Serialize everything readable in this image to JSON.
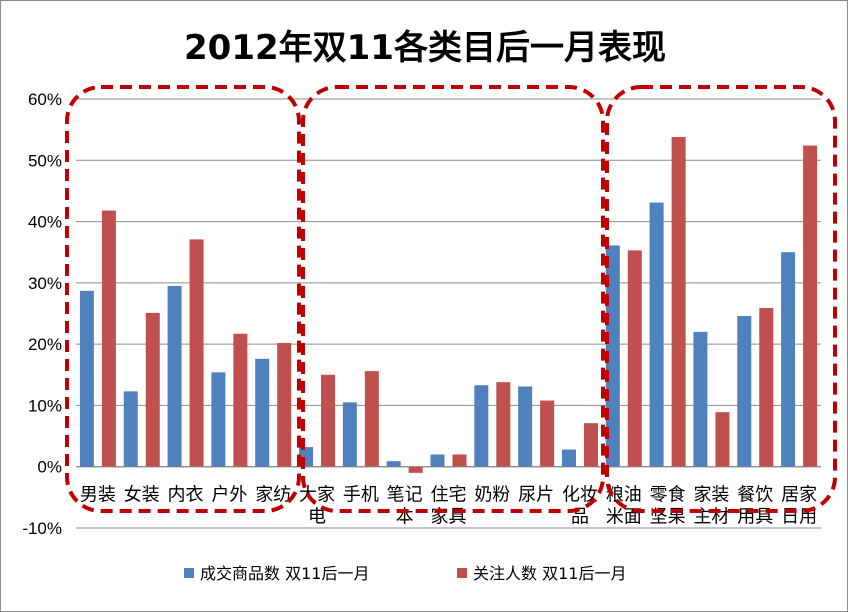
{
  "chart_data": {
    "type": "bar",
    "title": "2012年双11各类目后一月表现",
    "categories": [
      "男装",
      "女装",
      "内衣",
      "户外",
      "家纺",
      "大家电",
      "手机",
      "笔记本",
      "住宅家具",
      "奶粉",
      "尿片",
      "化妆品",
      "粮油米面",
      "零食坚果",
      "家装主材",
      "餐饮用具",
      "居家日用"
    ],
    "series": [
      {
        "name": "成交商品数  双11后一月",
        "color": "#4f81bd",
        "values": [
          28.7,
          12.3,
          29.5,
          15.4,
          17.6,
          3.2,
          10.5,
          0.9,
          2.0,
          13.3,
          13.1,
          2.8,
          36.1,
          43.1,
          22.0,
          24.6,
          35.0
        ]
      },
      {
        "name": "关注人数  双11后一月",
        "color": "#c0504d",
        "values": [
          41.8,
          25.1,
          37.1,
          21.7,
          20.2,
          15.0,
          15.6,
          -1.0,
          2.0,
          13.8,
          10.8,
          7.1,
          35.3,
          53.8,
          8.9,
          25.9,
          52.4
        ]
      }
    ],
    "ylim": [
      -10,
      60
    ],
    "yticks": [
      "-10%",
      "0%",
      "10%",
      "20%",
      "30%",
      "40%",
      "50%",
      "60%"
    ],
    "grid": true,
    "legend_position": "bottom",
    "annotations": [
      {
        "type": "dashed-rounded-box",
        "color": "#c00000",
        "covers": [
          "男装",
          "女装",
          "内衣",
          "户外",
          "家纺"
        ]
      },
      {
        "type": "dashed-rounded-box",
        "color": "#c00000",
        "covers": [
          "大家电",
          "手机",
          "笔记本",
          "住宅家具",
          "奶粉",
          "尿片",
          "化妆品"
        ]
      },
      {
        "type": "dashed-rounded-box",
        "color": "#c00000",
        "covers": [
          "粮油米面",
          "零食坚果",
          "家装主材",
          "餐饮用具",
          "居家日用"
        ]
      }
    ]
  }
}
